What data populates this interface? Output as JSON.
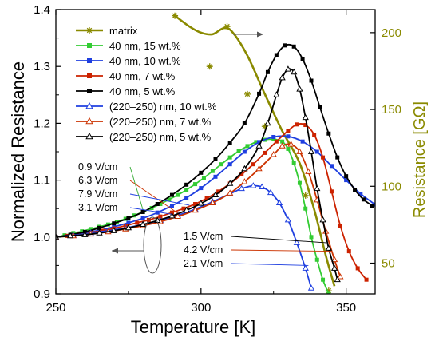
{
  "chart_data": {
    "type": "line",
    "xlabel": "Temperature [K]",
    "ylabel": "Normalized Resistance",
    "y2label": "Resistance [GΩ]",
    "xlim": [
      250,
      360
    ],
    "ylim": [
      0.9,
      1.4
    ],
    "y2lim": [
      30,
      215
    ],
    "xticks": [
      "250",
      "300",
      "350"
    ],
    "yticks": [
      "0.9",
      "1.0",
      "1.1",
      "1.2",
      "1.3",
      "1.4"
    ],
    "y2ticks": [
      "50",
      "100",
      "150",
      "200"
    ],
    "legend_position": "top-left",
    "series": [
      {
        "name": "matrix",
        "axis": "right",
        "color": "#8a8a00",
        "marker": "star",
        "curve": [
          [
            291,
            211
          ],
          [
            296,
            204
          ],
          [
            300,
            200
          ],
          [
            304,
            199
          ],
          [
            308,
            203
          ],
          [
            311,
            200
          ],
          [
            316,
            185
          ],
          [
            322,
            160
          ],
          [
            328,
            136
          ],
          [
            334,
            115
          ],
          [
            339,
            85
          ],
          [
            343,
            55
          ],
          [
            346,
            35
          ]
        ],
        "points": [
          [
            291,
            211
          ],
          [
            303,
            178
          ],
          [
            309,
            204
          ],
          [
            316,
            160
          ],
          [
            322,
            139
          ],
          [
            336,
            94
          ],
          [
            344,
            32
          ]
        ]
      },
      {
        "name": "40 nm, 15 wt.%",
        "axis": "left",
        "color": "#33cc33",
        "marker": "square",
        "points": [
          [
            250,
            1.0
          ],
          [
            253,
            1.003
          ],
          [
            256,
            1.007
          ],
          [
            259,
            1.01
          ],
          [
            262,
            1.014
          ],
          [
            265,
            1.018
          ],
          [
            268,
            1.022
          ],
          [
            271,
            1.027
          ],
          [
            274,
            1.032
          ],
          [
            277,
            1.038
          ],
          [
            280,
            1.044
          ],
          [
            283,
            1.051
          ],
          [
            286,
            1.058
          ],
          [
            289,
            1.066
          ],
          [
            292,
            1.074
          ],
          [
            295,
            1.083
          ],
          [
            298,
            1.093
          ],
          [
            301,
            1.104
          ],
          [
            304,
            1.116
          ],
          [
            307,
            1.128
          ],
          [
            310,
            1.14
          ],
          [
            313,
            1.151
          ],
          [
            316,
            1.16
          ],
          [
            319,
            1.167
          ],
          [
            322,
            1.171
          ],
          [
            325,
            1.172
          ],
          [
            328,
            1.168
          ],
          [
            330,
            1.155
          ],
          [
            332,
            1.13
          ],
          [
            334,
            1.095
          ],
          [
            336,
            1.05
          ],
          [
            338,
            1.0
          ],
          [
            340,
            0.96
          ],
          [
            342,
            0.925
          ],
          [
            344,
            0.9
          ]
        ]
      },
      {
        "name": "40 nm, 10 wt.%",
        "axis": "left",
        "color": "#1f3fe0",
        "marker": "square",
        "points": [
          [
            250,
            1.0
          ],
          [
            255,
            1.003
          ],
          [
            260,
            1.007
          ],
          [
            265,
            1.012
          ],
          [
            270,
            1.018
          ],
          [
            275,
            1.025
          ],
          [
            280,
            1.033
          ],
          [
            285,
            1.043
          ],
          [
            290,
            1.055
          ],
          [
            295,
            1.069
          ],
          [
            300,
            1.086
          ],
          [
            305,
            1.106
          ],
          [
            310,
            1.128
          ],
          [
            315,
            1.15
          ],
          [
            320,
            1.167
          ],
          [
            325,
            1.176
          ],
          [
            330,
            1.177
          ],
          [
            335,
            1.168
          ],
          [
            340,
            1.15
          ],
          [
            345,
            1.125
          ],
          [
            350,
            1.1
          ],
          [
            355,
            1.076
          ],
          [
            360,
            1.057
          ]
        ]
      },
      {
        "name": "40 nm, 7 wt.%",
        "axis": "left",
        "color": "#cc2200",
        "marker": "square",
        "points": [
          [
            250,
            1.0
          ],
          [
            254,
            1.002
          ],
          [
            258,
            1.005
          ],
          [
            262,
            1.008
          ],
          [
            266,
            1.011
          ],
          [
            270,
            1.015
          ],
          [
            274,
            1.02
          ],
          [
            278,
            1.025
          ],
          [
            282,
            1.03
          ],
          [
            286,
            1.036
          ],
          [
            290,
            1.043
          ],
          [
            294,
            1.05
          ],
          [
            298,
            1.058
          ],
          [
            302,
            1.068
          ],
          [
            306,
            1.08
          ],
          [
            310,
            1.094
          ],
          [
            314,
            1.11
          ],
          [
            318,
            1.128
          ],
          [
            322,
            1.148
          ],
          [
            326,
            1.168
          ],
          [
            330,
            1.187
          ],
          [
            333,
            1.198
          ],
          [
            336,
            1.197
          ],
          [
            339,
            1.18
          ],
          [
            342,
            1.14
          ],
          [
            345,
            1.08
          ],
          [
            348,
            1.02
          ],
          [
            351,
            0.975
          ],
          [
            354,
            0.945
          ],
          [
            357,
            0.925
          ]
        ]
      },
      {
        "name": "40 nm, 5 wt.%",
        "axis": "left",
        "color": "#000000",
        "marker": "square",
        "points": [
          [
            250,
            1.0
          ],
          [
            255,
            1.004
          ],
          [
            260,
            1.009
          ],
          [
            265,
            1.016
          ],
          [
            270,
            1.024
          ],
          [
            275,
            1.033
          ],
          [
            280,
            1.044
          ],
          [
            285,
            1.058
          ],
          [
            290,
            1.074
          ],
          [
            295,
            1.092
          ],
          [
            300,
            1.113
          ],
          [
            305,
            1.137
          ],
          [
            310,
            1.166
          ],
          [
            315,
            1.2
          ],
          [
            320,
            1.252
          ],
          [
            323,
            1.29
          ],
          [
            326,
            1.32
          ],
          [
            329,
            1.337
          ],
          [
            332,
            1.335
          ],
          [
            335,
            1.313
          ],
          [
            338,
            1.275
          ],
          [
            341,
            1.228
          ],
          [
            344,
            1.182
          ],
          [
            347,
            1.14
          ],
          [
            350,
            1.107
          ],
          [
            353,
            1.083
          ],
          [
            356,
            1.066
          ],
          [
            359,
            1.055
          ]
        ]
      },
      {
        "name": "(220–250) nm, 10 wt.%",
        "axis": "left",
        "color": "#1f3fe0",
        "marker": "triangle",
        "points": [
          [
            250,
            1.0
          ],
          [
            256,
            1.003
          ],
          [
            262,
            1.007
          ],
          [
            268,
            1.011
          ],
          [
            274,
            1.016
          ],
          [
            280,
            1.022
          ],
          [
            286,
            1.029
          ],
          [
            292,
            1.038
          ],
          [
            298,
            1.049
          ],
          [
            304,
            1.062
          ],
          [
            310,
            1.076
          ],
          [
            314,
            1.085
          ],
          [
            318,
            1.09
          ],
          [
            321,
            1.088
          ],
          [
            324,
            1.078
          ],
          [
            327,
            1.06
          ],
          [
            330,
            1.03
          ],
          [
            333,
            0.99
          ],
          [
            336,
            0.945
          ],
          [
            338,
            0.91
          ]
        ]
      },
      {
        "name": "(220–250) nm, 7 wt.%",
        "axis": "left",
        "color": "#cc3300",
        "marker": "triangle",
        "points": [
          [
            250,
            1.0
          ],
          [
            256,
            1.002
          ],
          [
            262,
            1.005
          ],
          [
            268,
            1.009
          ],
          [
            274,
            1.014
          ],
          [
            280,
            1.02
          ],
          [
            286,
            1.027
          ],
          [
            292,
            1.036
          ],
          [
            298,
            1.047
          ],
          [
            304,
            1.06
          ],
          [
            310,
            1.077
          ],
          [
            315,
            1.097
          ],
          [
            320,
            1.12
          ],
          [
            325,
            1.145
          ],
          [
            328,
            1.16
          ],
          [
            331,
            1.163
          ],
          [
            334,
            1.15
          ],
          [
            337,
            1.115
          ],
          [
            340,
            1.065
          ],
          [
            343,
            1.01
          ],
          [
            346,
            0.96
          ],
          [
            348,
            0.93
          ]
        ]
      },
      {
        "name": "(220–250) nm, 5 wt.%",
        "axis": "left",
        "color": "#000000",
        "marker": "triangle",
        "points": [
          [
            250,
            1.0
          ],
          [
            255,
            1.002
          ],
          [
            260,
            1.004
          ],
          [
            265,
            1.007
          ],
          [
            270,
            1.011
          ],
          [
            275,
            1.016
          ],
          [
            280,
            1.022
          ],
          [
            285,
            1.029
          ],
          [
            290,
            1.037
          ],
          [
            295,
            1.047
          ],
          [
            300,
            1.059
          ],
          [
            305,
            1.074
          ],
          [
            310,
            1.094
          ],
          [
            315,
            1.12
          ],
          [
            320,
            1.16
          ],
          [
            323,
            1.2
          ],
          [
            326,
            1.25
          ],
          [
            328,
            1.28
          ],
          [
            330,
            1.295
          ],
          [
            332,
            1.29
          ],
          [
            334,
            1.26
          ],
          [
            336,
            1.21
          ],
          [
            338,
            1.15
          ],
          [
            340,
            1.085
          ],
          [
            342,
            1.03
          ],
          [
            344,
            0.98
          ],
          [
            346,
            0.945
          ],
          [
            347,
            0.925
          ]
        ]
      }
    ],
    "annotations": {
      "left_group": [
        "0.9 V/cm",
        "6.3 V/cm",
        "7.9 V/cm",
        "3.1 V/cm"
      ],
      "right_group": [
        "1.5 V/cm",
        "4.2 V/cm",
        "2.1 V/cm"
      ]
    }
  }
}
